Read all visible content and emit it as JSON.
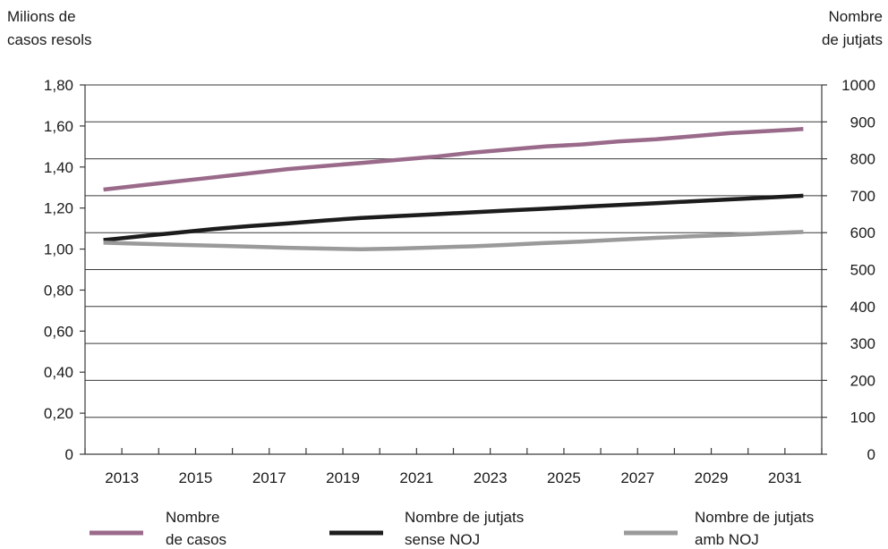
{
  "chart_data": {
    "type": "line",
    "title": "",
    "ylabel_left": [
      "Milions de",
      "casos resols"
    ],
    "ylabel_right": [
      "Nombre",
      "de jutjats"
    ],
    "x": [
      2012.5,
      2013.5,
      2014.5,
      2015.5,
      2016.5,
      2017.5,
      2018.5,
      2019.5,
      2020.5,
      2021.5,
      2022.5,
      2023.5,
      2024.5,
      2025.5,
      2026.5,
      2027.5,
      2028.5,
      2029.5,
      2030.5,
      2031.5
    ],
    "xticks": [
      "2013",
      "2015",
      "2017",
      "2019",
      "2021",
      "2023",
      "2025",
      "2027",
      "2029",
      "2031"
    ],
    "xtick_values": [
      2013,
      2015,
      2017,
      2019,
      2021,
      2023,
      2025,
      2027,
      2029,
      2031
    ],
    "xlim": [
      2012,
      2032
    ],
    "ylim_left": [
      0,
      1.8
    ],
    "yticks_left": [
      "0",
      "0,20",
      "0,40",
      "0,60",
      "0,80",
      "1,00",
      "1,20",
      "1,40",
      "1,60",
      "1,80"
    ],
    "ylim_right": [
      0,
      1000
    ],
    "yticks_right": [
      "0",
      "100",
      "200",
      "300",
      "400",
      "500",
      "600",
      "700",
      "800",
      "900",
      "1000"
    ],
    "grid": true,
    "legend_position": "bottom",
    "series": [
      {
        "name": [
          "Nombre",
          "de casos"
        ],
        "axis": "left",
        "color": "#9a6a8a",
        "values": [
          1.29,
          1.31,
          1.33,
          1.35,
          1.37,
          1.39,
          1.405,
          1.42,
          1.435,
          1.45,
          1.47,
          1.485,
          1.5,
          1.51,
          1.525,
          1.535,
          1.55,
          1.565,
          1.575,
          1.585
        ]
      },
      {
        "name": [
          "Nombre de jutjats",
          "sense NOJ"
        ],
        "axis": "right",
        "color": "#1c1c1c",
        "values": [
          580,
          590,
          600,
          610,
          618,
          625,
          633,
          640,
          645,
          650,
          655,
          660,
          665,
          670,
          675,
          680,
          685,
          690,
          695,
          700
        ]
      },
      {
        "name": [
          "Nombre de jutjats",
          "amb NOJ"
        ],
        "axis": "right",
        "color": "#9a9a9a",
        "values": [
          573,
          570,
          567,
          565,
          562,
          559,
          557,
          555,
          557,
          560,
          563,
          567,
          572,
          576,
          581,
          586,
          590,
          594,
          598,
          602
        ]
      }
    ]
  }
}
